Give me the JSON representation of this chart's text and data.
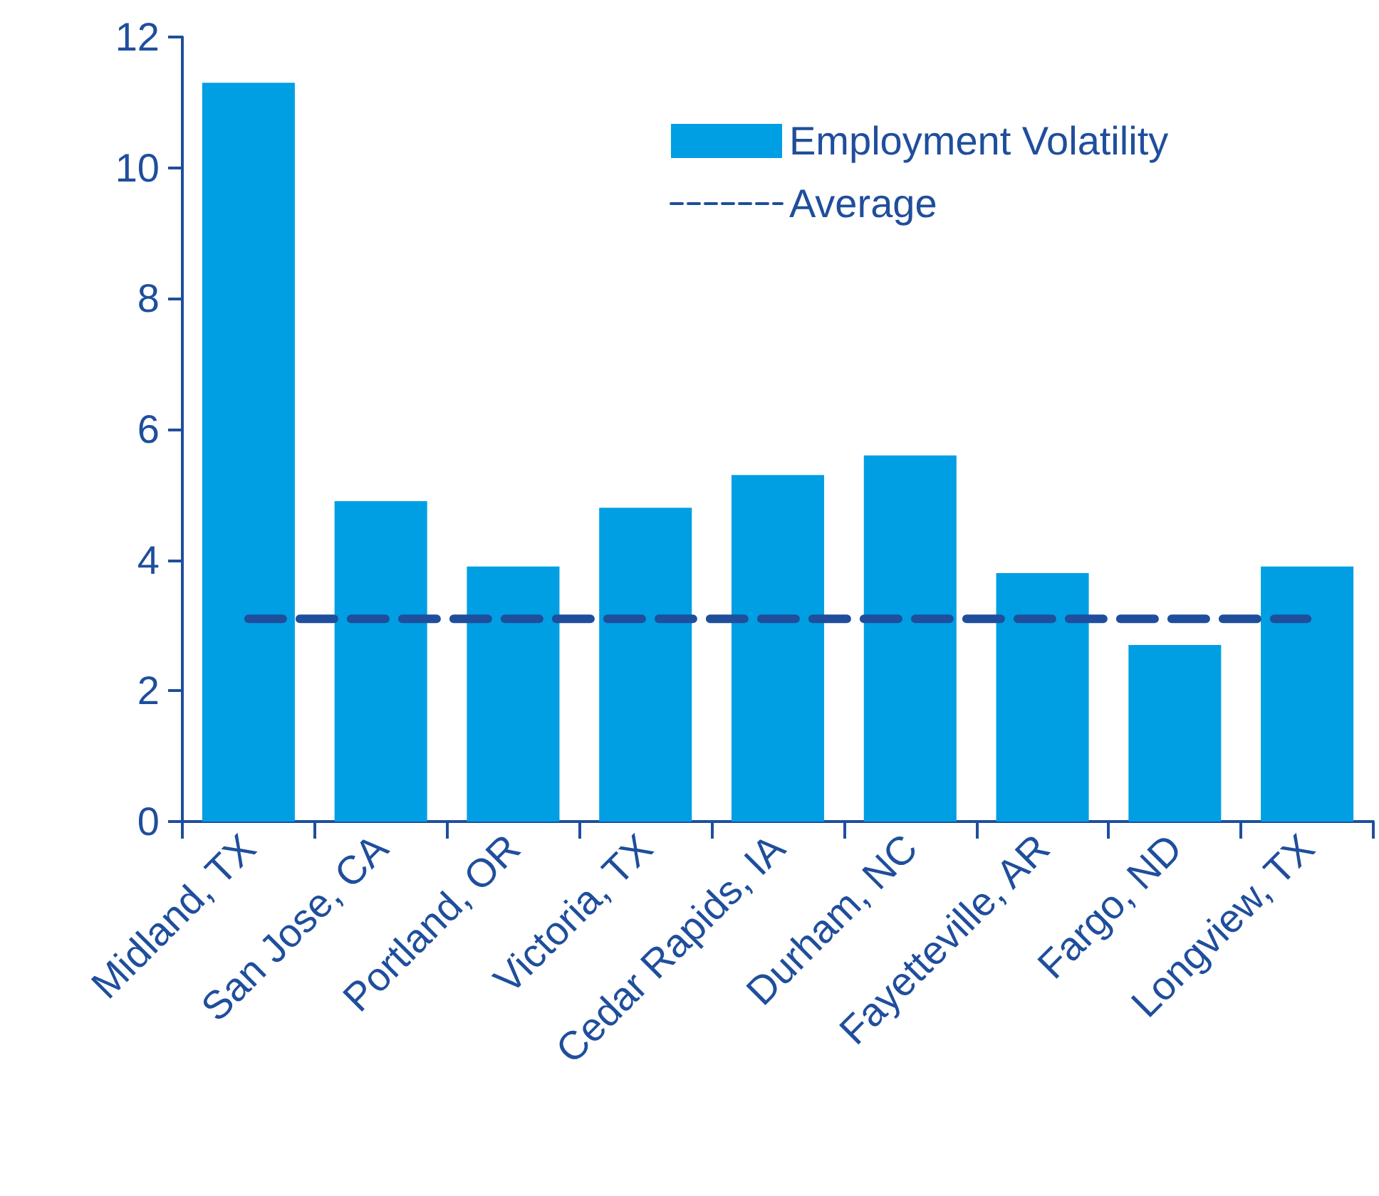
{
  "chart_data": {
    "type": "bar",
    "categories": [
      "Midland, TX",
      "San Jose, CA",
      "Portland, OR",
      "Victoria, TX",
      "Cedar Rapids, IA",
      "Durham, NC",
      "Fayetteville, AR",
      "Fargo, ND",
      "Longview, TX"
    ],
    "series": [
      {
        "name": "Employment Volatility",
        "color": "#009fe3",
        "values": [
          11.3,
          4.9,
          3.9,
          4.8,
          5.3,
          5.6,
          3.8,
          2.7,
          3.9
        ]
      },
      {
        "name": "Average",
        "type": "line",
        "line_style": "dashed",
        "color": "#1f4e9c",
        "values": [
          3.1,
          3.1,
          3.1,
          3.1,
          3.1,
          3.1,
          3.1,
          3.1,
          3.1
        ]
      }
    ],
    "ylim": [
      0,
      12
    ],
    "yticks": [
      0,
      2,
      4,
      6,
      8,
      10,
      12
    ],
    "grid": false,
    "legend": "top right"
  }
}
